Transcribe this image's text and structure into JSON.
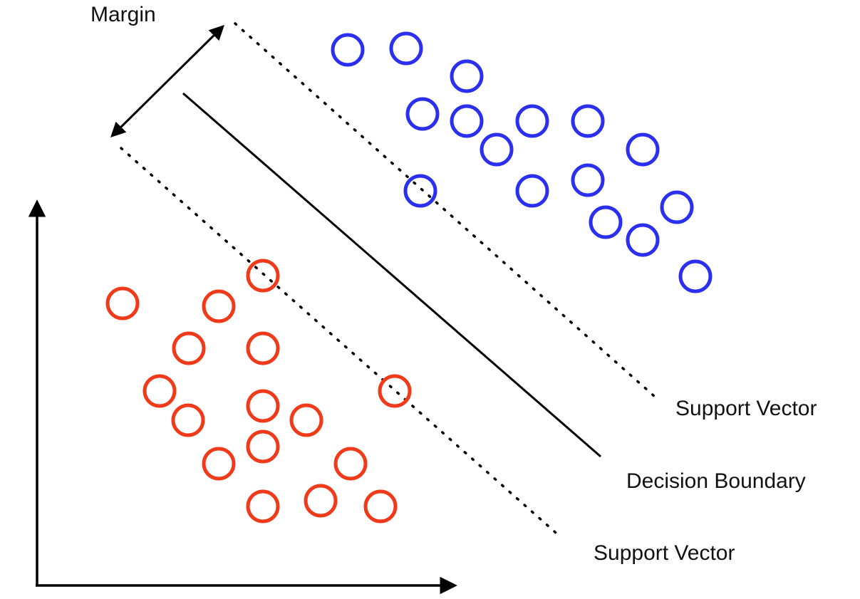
{
  "labels": {
    "margin": "Margin",
    "support_vector_upper": "Support Vector",
    "decision_boundary": "Decision Boundary",
    "support_vector_lower": "Support Vector"
  },
  "colors": {
    "positive_class": "#2a2ff0",
    "negative_class": "#f03a1a",
    "lines": "#000000"
  },
  "chart_data": {
    "type": "scatter",
    "series": [
      {
        "color": "#2a2ff0",
        "points": [
          [
            488,
            70
          ],
          [
            570,
            68
          ],
          [
            655,
            107
          ],
          [
            593,
            160
          ],
          [
            655,
            170
          ],
          [
            747,
            170
          ],
          [
            825,
            170
          ],
          [
            697,
            210
          ],
          [
            902,
            210
          ],
          [
            590,
            268
          ],
          [
            747,
            268
          ],
          [
            825,
            253
          ],
          [
            950,
            291
          ],
          [
            850,
            312
          ],
          [
            902,
            337
          ],
          [
            976,
            388
          ]
        ]
      },
      {
        "color": "#f03a1a",
        "points": [
          [
            369,
            387
          ],
          [
            172,
            426
          ],
          [
            307,
            430
          ],
          [
            265,
            489
          ],
          [
            369,
            489
          ],
          [
            224,
            549
          ],
          [
            554,
            549
          ],
          [
            369,
            570
          ],
          [
            264,
            590
          ],
          [
            430,
            590
          ],
          [
            369,
            627
          ],
          [
            307,
            651
          ],
          [
            492,
            651
          ],
          [
            369,
            711
          ],
          [
            450,
            703
          ],
          [
            534,
            711
          ]
        ]
      }
    ]
  }
}
